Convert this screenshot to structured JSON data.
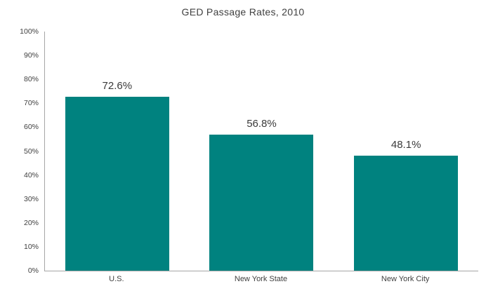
{
  "chart_data": {
    "type": "bar",
    "title": "GED Passage Rates, 2010",
    "categories": [
      "U.S.",
      "New York State",
      "New York City"
    ],
    "values": [
      72.6,
      56.8,
      48.1
    ],
    "value_labels": [
      "72.6%",
      "56.8%",
      "48.1%"
    ],
    "xlabel": "",
    "ylabel": "",
    "ylim": [
      0,
      100
    ],
    "ytick_step": 10,
    "ytick_labels": [
      "0%",
      "10%",
      "20%",
      "30%",
      "40%",
      "50%",
      "60%",
      "70%",
      "80%",
      "90%",
      "100%"
    ],
    "grid": false,
    "legend": false,
    "colors": {
      "bar": "#00827f",
      "axis": "#a6a6a6",
      "text": "#404040"
    }
  }
}
